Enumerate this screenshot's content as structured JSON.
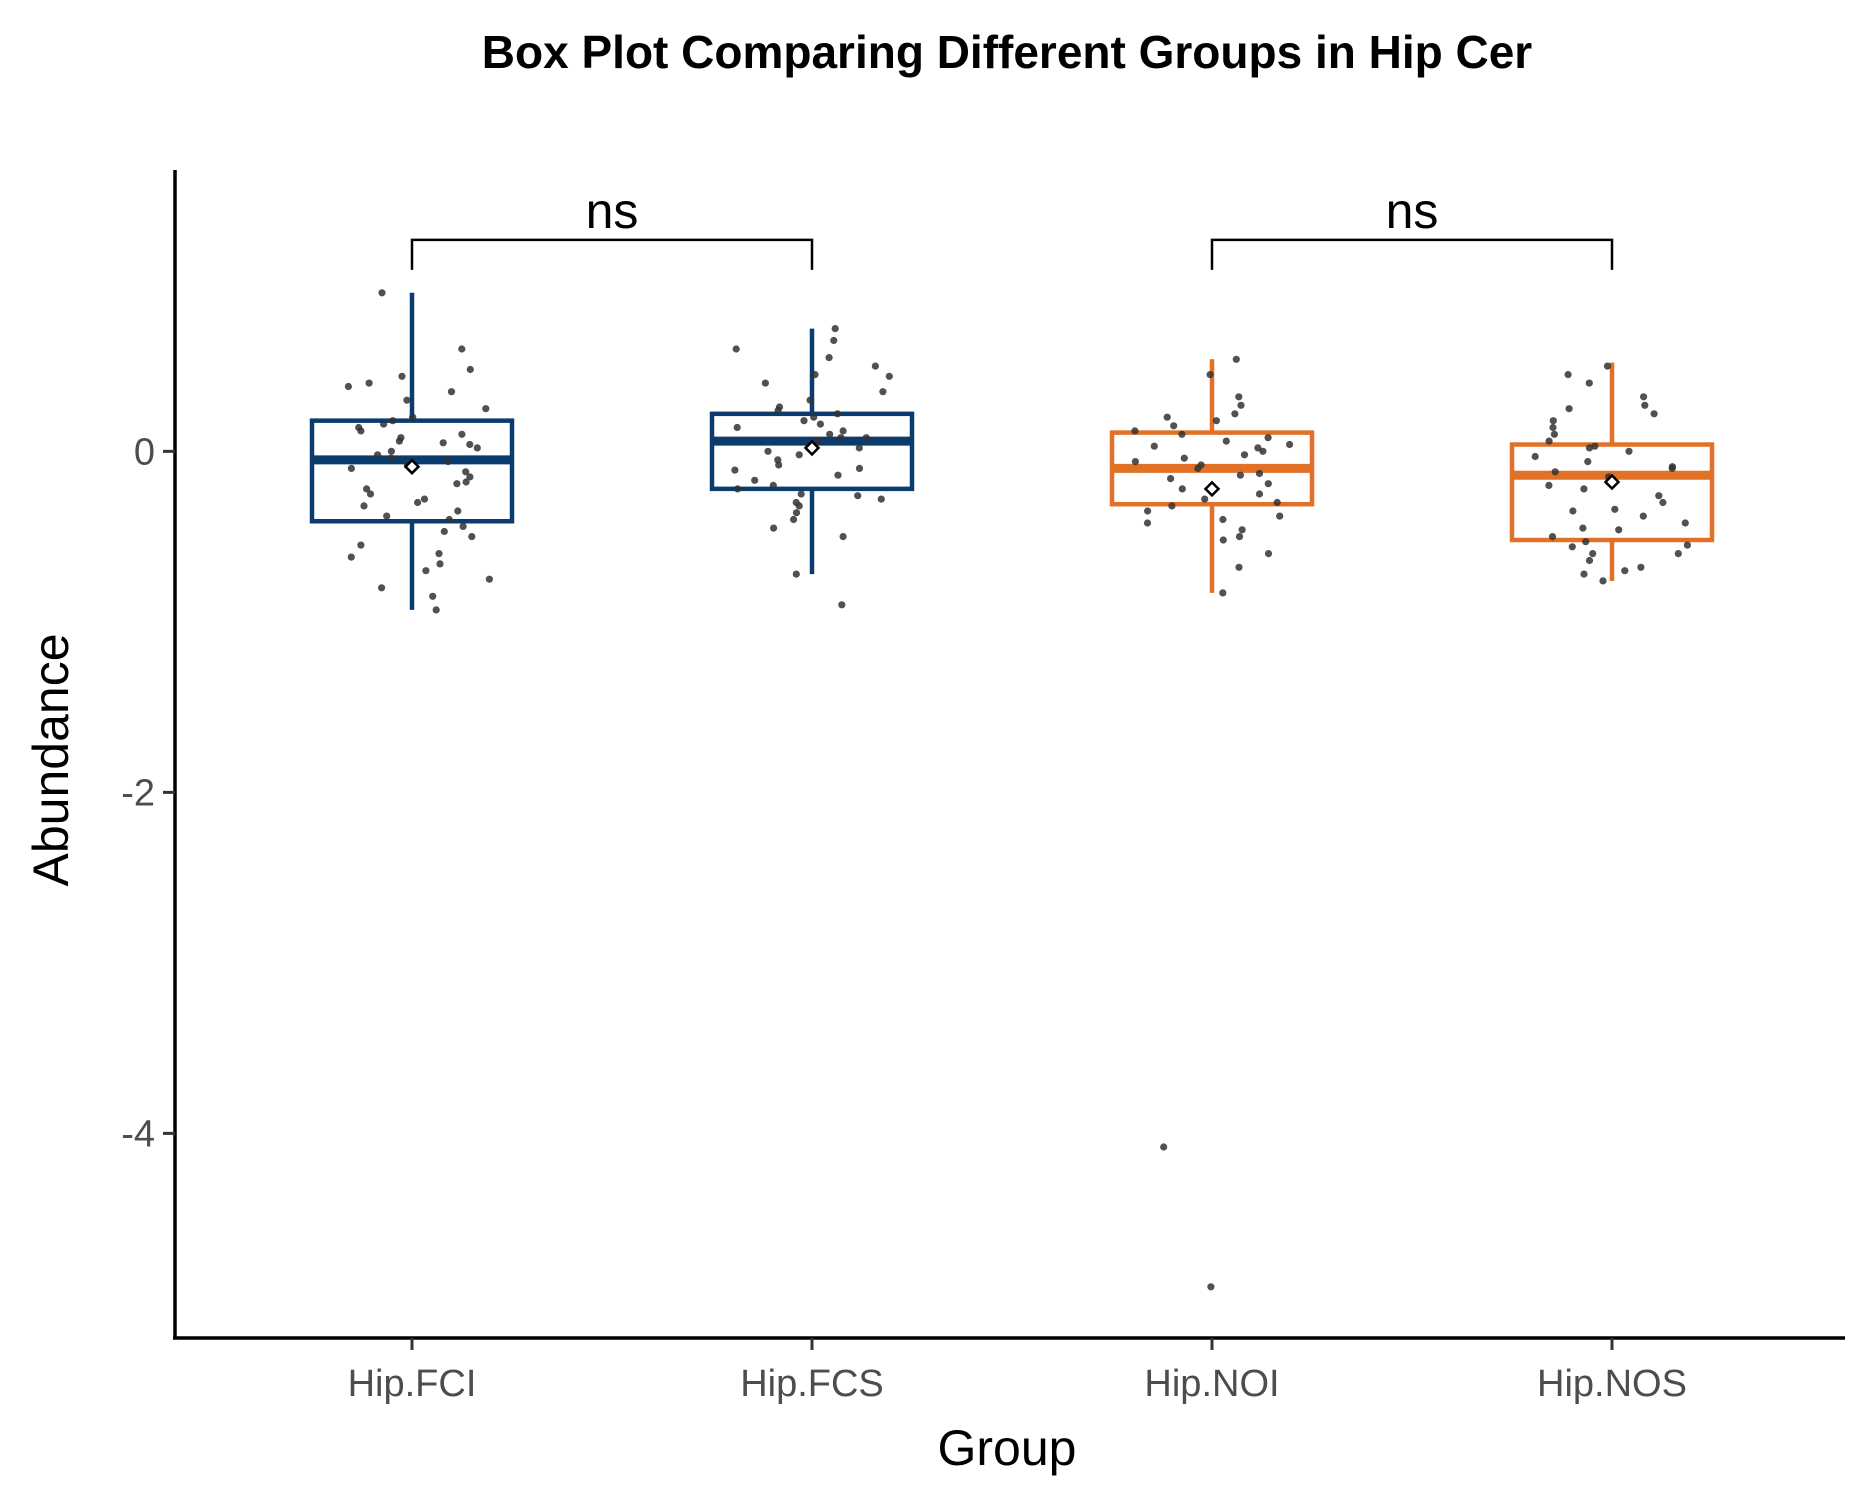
{
  "chart_data": {
    "type": "box",
    "title": "Box Plot Comparing Different Groups in Hip Cer",
    "xlabel": "Group",
    "ylabel": "Abundance",
    "ylim": [
      -5.2,
      1.65
    ],
    "yticks": [
      0,
      -2,
      -4
    ],
    "ytick_labels": [
      "0",
      "-2",
      "-4"
    ],
    "grid": false,
    "legend": "none",
    "categories": [
      "Hip.FCI",
      "Hip.FCS",
      "Hip.NOI",
      "Hip.NOS"
    ],
    "boxes": [
      {
        "name": "Hip.FCI",
        "color": "#0b3c6e",
        "q1": -0.41,
        "median": -0.05,
        "q3": 0.18,
        "whisker_low": -0.93,
        "whisker_high": 0.93,
        "mean": -0.09
      },
      {
        "name": "Hip.FCS",
        "color": "#0b3c6e",
        "q1": -0.22,
        "median": 0.06,
        "q3": 0.22,
        "whisker_low": -0.72,
        "whisker_high": 0.72,
        "mean": 0.02
      },
      {
        "name": "Hip.NOI",
        "color": "#e07127",
        "q1": -0.31,
        "median": -0.1,
        "q3": 0.11,
        "whisker_low": -0.83,
        "whisker_high": 0.54,
        "mean": -0.22
      },
      {
        "name": "Hip.NOS",
        "color": "#e07127",
        "q1": -0.52,
        "median": -0.14,
        "q3": 0.04,
        "whisker_low": -0.76,
        "whisker_high": 0.52,
        "mean": -0.18
      }
    ],
    "points": [
      [
        -0.93,
        -0.8,
        -0.85,
        -0.75,
        -0.66,
        -0.6,
        -0.55,
        -0.5,
        -0.47,
        -0.44,
        -0.4,
        -0.38,
        -0.35,
        -0.32,
        -0.28,
        -0.25,
        -0.22,
        -0.19,
        -0.15,
        -0.12,
        -0.1,
        -0.08,
        -0.06,
        -0.04,
        -0.02,
        0.0,
        0.02,
        0.04,
        0.06,
        0.08,
        0.1,
        0.12,
        0.14,
        0.16,
        0.18,
        0.2,
        0.25,
        0.3,
        0.35,
        0.4,
        0.44,
        0.48,
        0.6,
        0.93,
        -0.3,
        -0.18,
        0.05,
        -0.62,
        -0.7,
        0.38
      ],
      [
        -0.9,
        -0.72,
        -0.5,
        -0.45,
        -0.4,
        -0.36,
        -0.32,
        -0.28,
        -0.25,
        -0.22,
        -0.2,
        -0.17,
        -0.14,
        -0.11,
        -0.08,
        -0.05,
        -0.02,
        0.0,
        0.02,
        0.04,
        0.06,
        0.08,
        0.1,
        0.12,
        0.14,
        0.16,
        0.18,
        0.2,
        0.22,
        0.26,
        0.3,
        0.35,
        0.4,
        0.45,
        0.5,
        0.55,
        0.6,
        0.65,
        0.72,
        -0.3,
        -0.1,
        0.08,
        0.24,
        -0.26,
        0.44
      ],
      [
        -4.9,
        -4.08,
        -0.83,
        -0.68,
        -0.6,
        -0.52,
        -0.46,
        -0.42,
        -0.38,
        -0.35,
        -0.32,
        -0.28,
        -0.25,
        -0.22,
        -0.19,
        -0.16,
        -0.13,
        -0.1,
        -0.08,
        -0.06,
        -0.04,
        -0.02,
        0.0,
        0.02,
        0.04,
        0.06,
        0.08,
        0.1,
        0.12,
        0.15,
        0.18,
        0.22,
        0.27,
        0.32,
        0.45,
        0.54,
        -0.3,
        -0.14,
        0.03,
        -0.4,
        0.2,
        -0.5
      ],
      [
        -0.76,
        -0.72,
        -0.68,
        -0.64,
        -0.6,
        -0.56,
        -0.53,
        -0.5,
        -0.46,
        -0.42,
        -0.38,
        -0.34,
        -0.3,
        -0.26,
        -0.22,
        -0.18,
        -0.15,
        -0.12,
        -0.09,
        -0.06,
        -0.03,
        0.0,
        0.03,
        0.06,
        0.1,
        0.14,
        0.18,
        0.22,
        0.27,
        0.32,
        0.4,
        0.45,
        0.5,
        -0.6,
        -0.45,
        -0.2,
        -0.1,
        0.02,
        -0.55,
        0.25,
        -0.35,
        -0.7
      ]
    ],
    "comparisons": [
      {
        "groups": [
          "Hip.FCI",
          "Hip.FCS"
        ],
        "label": "ns",
        "y": 1.24
      },
      {
        "groups": [
          "Hip.NOI",
          "Hip.NOS"
        ],
        "label": "ns",
        "y": 1.24
      }
    ],
    "colors": {
      "fc": "#0b3c6e",
      "no": "#e07127",
      "points": "#333333"
    }
  }
}
